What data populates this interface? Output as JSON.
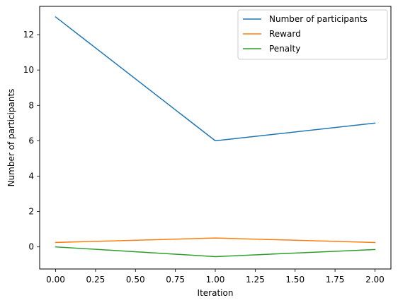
{
  "chart_data": {
    "type": "line",
    "title": "",
    "xlabel": "Iteration",
    "ylabel": "Number of participants",
    "xlim": [
      -0.1,
      2.1
    ],
    "ylim": [
      -1.25,
      13.6
    ],
    "grid": false,
    "legend_position": "top-right",
    "x_ticks": [
      0.0,
      0.25,
      0.5,
      0.75,
      1.0,
      1.25,
      1.5,
      1.75,
      2.0
    ],
    "x_tick_labels": [
      "0.00",
      "0.25",
      "0.50",
      "0.75",
      "1.00",
      "1.25",
      "1.50",
      "1.75",
      "2.00"
    ],
    "y_ticks": [
      0,
      2,
      4,
      6,
      8,
      10,
      12
    ],
    "y_tick_labels": [
      "0",
      "2",
      "4",
      "6",
      "8",
      "10",
      "12"
    ],
    "x": [
      0,
      1,
      2
    ],
    "series": [
      {
        "name": "Number of participants",
        "color": "#1f77b4",
        "values": [
          13,
          6,
          7
        ]
      },
      {
        "name": "Reward",
        "color": "#ff7f0e",
        "values": [
          0.25,
          0.5,
          0.25
        ]
      },
      {
        "name": "Penalty",
        "color": "#2ca02c",
        "values": [
          0.0,
          -0.55,
          -0.15
        ]
      }
    ]
  }
}
